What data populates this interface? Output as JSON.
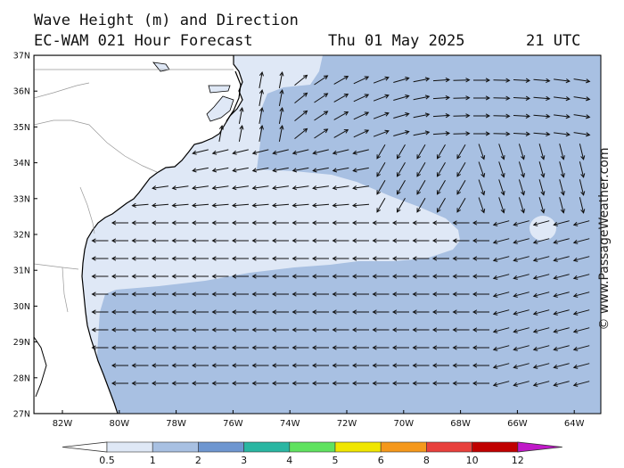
{
  "header": {
    "title": "Wave Height (m) and Direction",
    "model": "EC-WAM 021 Hour Forecast",
    "date": "Thu 01 May 2025",
    "time": "21 UTC"
  },
  "watermark": "© www.PassageWeather.com",
  "map": {
    "lat_labels": [
      "37N",
      "36N",
      "35N",
      "34N",
      "33N",
      "32N",
      "31N",
      "30N",
      "29N",
      "28N",
      "27N"
    ],
    "lon_labels": [
      "82W",
      "80W",
      "78W",
      "76W",
      "74W",
      "72W",
      "70W",
      "68W",
      "66W",
      "64W"
    ]
  },
  "legend": {
    "values": [
      "0.5",
      "1",
      "2",
      "3",
      "4",
      "5",
      "6",
      "8",
      "10",
      "12"
    ],
    "colors": [
      "#ffffff",
      "#dfe8f6",
      "#a8c0e2",
      "#6e96d0",
      "#2ab6a2",
      "#5fe25f",
      "#f0e600",
      "#f5981c",
      "#e8403c",
      "#c00000",
      "#c018c8"
    ]
  },
  "colors": {
    "land": "#ffffff",
    "sea_low": "#dfe8f6",
    "sea_mid": "#a8c0e2",
    "arrow": "#111111"
  }
}
